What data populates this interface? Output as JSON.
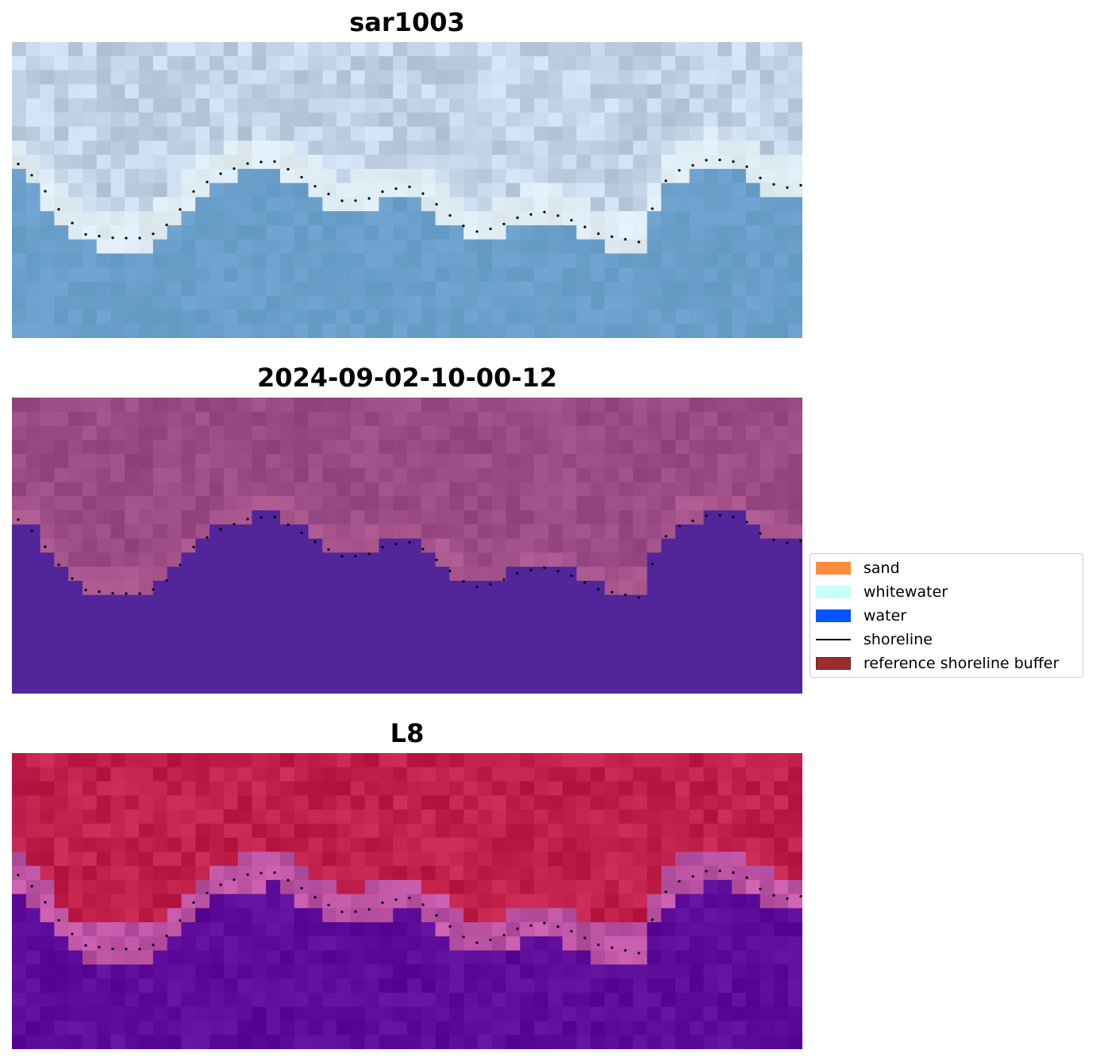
{
  "panels": [
    {
      "title": "sar1003",
      "style": "sar"
    },
    {
      "title": "2024-09-02-10-00-12",
      "style": "classified"
    },
    {
      "title": "L8",
      "style": "mndwi"
    }
  ],
  "legend": {
    "items": [
      {
        "label": "sand",
        "kind": "patch",
        "color": "#ff8c3c"
      },
      {
        "label": "whitewater",
        "kind": "patch",
        "color": "#c8fff8"
      },
      {
        "label": "water",
        "kind": "patch",
        "color": "#0055ff"
      },
      {
        "label": "shoreline",
        "kind": "line",
        "color": "#000000"
      },
      {
        "label": "reference shoreline buffer",
        "kind": "patch",
        "color": "#9b2d2d"
      }
    ]
  },
  "colors": {
    "water_class": "#52259a",
    "land_class": "#9a4b86",
    "sar_water": "#6ba3cc",
    "sar_land": "#c3d3e6",
    "mndwi_land": "#c0204a",
    "mndwi_water": "#5c0a98"
  }
}
